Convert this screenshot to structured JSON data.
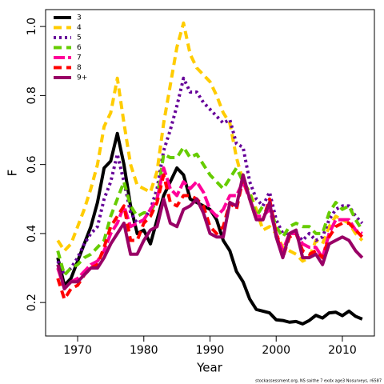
{
  "chart_data": {
    "type": "line",
    "x_label": "Year",
    "y_label": "F",
    "note": "stockassessment.org, NS saithe 7 exdx age3 Nosurveys, r6587",
    "x": [
      1967,
      1968,
      1969,
      1970,
      1971,
      1972,
      1973,
      1974,
      1975,
      1976,
      1977,
      1978,
      1979,
      1980,
      1981,
      1982,
      1983,
      1984,
      1985,
      1986,
      1987,
      1988,
      1989,
      1990,
      1991,
      1992,
      1993,
      1994,
      1995,
      1996,
      1997,
      1998,
      1999,
      2000,
      2001,
      2002,
      2003,
      2004,
      2005,
      2006,
      2007,
      2008,
      2009,
      2010,
      2011,
      2012,
      2013
    ],
    "xlim": [
      1965.16,
      2014.84
    ],
    "xticks": [
      1970,
      1980,
      1990,
      2000,
      2010
    ],
    "ylim": [
      0.103,
      1.049
    ],
    "yticks": [
      0.2,
      0.4,
      0.6,
      0.8,
      {
        "value": 1,
        "label": "1.0"
      }
    ],
    "legend": "top-left",
    "series": [
      {
        "name": "3",
        "color": "#000000",
        "linestyle": "solid",
        "values": [
          0.33,
          0.25,
          0.27,
          0.32,
          0.37,
          0.42,
          0.49,
          0.59,
          0.61,
          0.69,
          0.6,
          0.48,
          0.4,
          0.41,
          0.37,
          0.44,
          0.51,
          0.55,
          0.59,
          0.57,
          0.5,
          0.49,
          0.48,
          0.47,
          0.44,
          0.38,
          0.35,
          0.29,
          0.26,
          0.21,
          0.18,
          0.175,
          0.17,
          0.15,
          0.148,
          0.143,
          0.145,
          0.138,
          0.148,
          0.163,
          0.155,
          0.17,
          0.172,
          0.162,
          0.175,
          0.16,
          0.152
        ]
      },
      {
        "name": "4",
        "color": "#ffcc00",
        "linestyle": "dashed",
        "values": [
          0.38,
          0.35,
          0.37,
          0.42,
          0.47,
          0.53,
          0.6,
          0.71,
          0.75,
          0.85,
          0.72,
          0.6,
          0.54,
          0.53,
          0.52,
          0.58,
          0.72,
          0.83,
          0.94,
          1.01,
          0.92,
          0.88,
          0.86,
          0.84,
          0.8,
          0.75,
          0.72,
          0.62,
          0.55,
          0.52,
          0.47,
          0.41,
          0.42,
          0.4,
          0.36,
          0.35,
          0.34,
          0.32,
          0.33,
          0.38,
          0.37,
          0.42,
          0.45,
          0.44,
          0.43,
          0.4,
          0.38
        ]
      },
      {
        "name": "5",
        "color": "#660099",
        "linestyle": "dotted",
        "values": [
          0.32,
          0.28,
          0.3,
          0.33,
          0.37,
          0.4,
          0.42,
          0.5,
          0.55,
          0.63,
          0.55,
          0.46,
          0.43,
          0.44,
          0.47,
          0.53,
          0.64,
          0.7,
          0.77,
          0.85,
          0.81,
          0.81,
          0.78,
          0.76,
          0.74,
          0.72,
          0.73,
          0.66,
          0.65,
          0.55,
          0.5,
          0.48,
          0.52,
          0.44,
          0.4,
          0.4,
          0.4,
          0.38,
          0.4,
          0.38,
          0.39,
          0.44,
          0.47,
          0.48,
          0.48,
          0.45,
          0.43
        ]
      },
      {
        "name": "6",
        "color": "#66cc00",
        "linestyle": "dashed",
        "values": [
          0.35,
          0.28,
          0.3,
          0.31,
          0.33,
          0.34,
          0.36,
          0.38,
          0.45,
          0.5,
          0.55,
          0.48,
          0.45,
          0.46,
          0.46,
          0.5,
          0.63,
          0.62,
          0.62,
          0.65,
          0.62,
          0.63,
          0.6,
          0.57,
          0.55,
          0.53,
          0.56,
          0.59,
          0.55,
          0.52,
          0.45,
          0.48,
          0.48,
          0.42,
          0.39,
          0.42,
          0.43,
          0.42,
          0.42,
          0.4,
          0.4,
          0.46,
          0.49,
          0.47,
          0.48,
          0.44,
          0.41
        ]
      },
      {
        "name": "7",
        "color": "#ff0099",
        "linestyle": "longdash",
        "values": [
          0.3,
          0.24,
          0.26,
          0.27,
          0.29,
          0.31,
          0.32,
          0.35,
          0.4,
          0.43,
          0.48,
          0.42,
          0.43,
          0.44,
          0.47,
          0.5,
          0.59,
          0.53,
          0.51,
          0.55,
          0.53,
          0.55,
          0.52,
          0.47,
          0.45,
          0.47,
          0.51,
          0.51,
          0.55,
          0.5,
          0.45,
          0.45,
          0.47,
          0.4,
          0.35,
          0.4,
          0.4,
          0.37,
          0.36,
          0.36,
          0.33,
          0.4,
          0.44,
          0.44,
          0.44,
          0.41,
          0.4
        ]
      },
      {
        "name": "8",
        "color": "#ff0000",
        "linestyle": "dashed",
        "values": [
          0.27,
          0.21,
          0.24,
          0.25,
          0.28,
          0.3,
          0.31,
          0.36,
          0.42,
          0.45,
          0.48,
          0.38,
          0.38,
          0.43,
          0.45,
          0.49,
          0.57,
          0.49,
          0.48,
          0.51,
          0.51,
          0.5,
          0.48,
          0.42,
          0.4,
          0.42,
          0.49,
          0.47,
          0.56,
          0.5,
          0.44,
          0.44,
          0.5,
          0.4,
          0.33,
          0.39,
          0.4,
          0.35,
          0.34,
          0.35,
          0.33,
          0.39,
          0.42,
          0.43,
          0.43,
          0.41,
          0.39
        ]
      },
      {
        "name": "9+",
        "color": "#990066",
        "linestyle": "solid",
        "values": [
          0.31,
          0.24,
          0.26,
          0.26,
          0.28,
          0.3,
          0.3,
          0.33,
          0.37,
          0.4,
          0.43,
          0.34,
          0.34,
          0.38,
          0.41,
          0.42,
          0.5,
          0.43,
          0.42,
          0.47,
          0.48,
          0.5,
          0.46,
          0.4,
          0.39,
          0.39,
          0.49,
          0.48,
          0.57,
          0.5,
          0.44,
          0.44,
          0.49,
          0.39,
          0.33,
          0.4,
          0.41,
          0.33,
          0.33,
          0.34,
          0.31,
          0.37,
          0.38,
          0.39,
          0.38,
          0.35,
          0.33
        ]
      }
    ]
  }
}
